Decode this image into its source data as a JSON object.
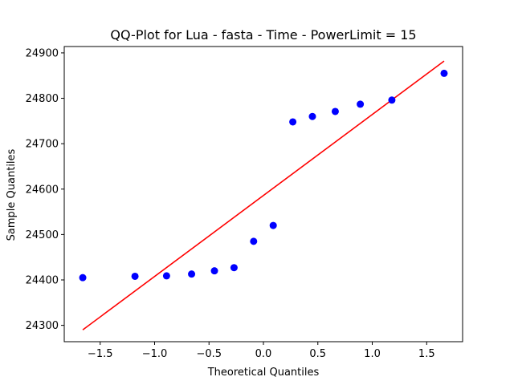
{
  "chart_data": {
    "type": "scatter",
    "title": "QQ-Plot for Lua - fasta - Time - PowerLimit = 15",
    "xlabel": "Theoretical Quantiles",
    "ylabel": "Sample Quantiles",
    "xlim": [
      -1.83,
      1.83
    ],
    "ylim": [
      24264,
      24914
    ],
    "x_ticks": [
      -1.5,
      -1.0,
      -0.5,
      0.0,
      0.5,
      1.0,
      1.5
    ],
    "x_tick_labels": [
      "−1.5",
      "−1.0",
      "−0.5",
      "0.0",
      "0.5",
      "1.0",
      "1.5"
    ],
    "y_ticks": [
      24300,
      24400,
      24500,
      24600,
      24700,
      24800,
      24900
    ],
    "y_tick_labels": [
      "24300",
      "24400",
      "24500",
      "24600",
      "24700",
      "24800",
      "24900"
    ],
    "grid": false,
    "series": [
      {
        "kind": "points",
        "color": "#0000ff",
        "x": [
          -1.66,
          -1.18,
          -0.89,
          -0.66,
          -0.45,
          -0.27,
          -0.09,
          0.09,
          0.27,
          0.45,
          0.66,
          0.89,
          1.18,
          1.66
        ],
        "y": [
          24405,
          24408,
          24409,
          24413,
          24420,
          24427,
          24485,
          24520,
          24748,
          24760,
          24771,
          24787,
          24796,
          24855
        ]
      },
      {
        "kind": "line",
        "color": "#ff0000",
        "x": [
          -1.66,
          1.66
        ],
        "y": [
          24290,
          24882
        ]
      }
    ]
  }
}
